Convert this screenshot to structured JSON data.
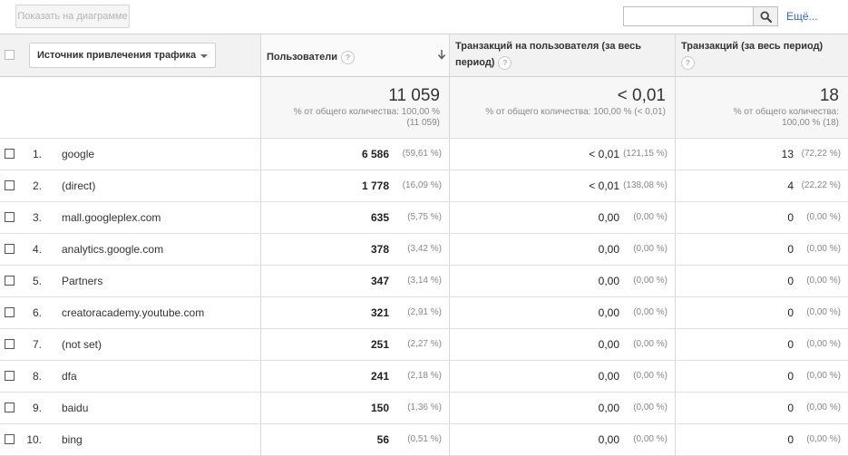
{
  "toolbar": {
    "plot_button": "Показать на диаграмме",
    "search_value": "",
    "search_icon": "search-icon",
    "more_link": "Ещё..."
  },
  "columns": {
    "dimension": "Источник привлечения трафика",
    "users": "Пользователи",
    "tpu_line1": "Транзакций на пользователя (за весь",
    "tpu_line2": "период)",
    "transactions": "Транзакций (за весь период)",
    "help": "?"
  },
  "totals": {
    "users": {
      "value": "11 059",
      "sub1": "% от общего количества: 100,00 %",
      "sub2": "(11 059)"
    },
    "tpu": {
      "value": "< 0,01",
      "sub1": "% от общего количества: 100,00 % (< 0,01)",
      "sub2": ""
    },
    "transactions": {
      "value": "18",
      "sub1": "% от общего количества:",
      "sub2": "100,00 % (18)"
    }
  },
  "rows": [
    {
      "idx": "1.",
      "source": "google",
      "users": "6 586",
      "users_pct": "(59,61 %)",
      "tpu": "< 0,01",
      "tpu_pct": "(121,15 %)",
      "tr": "13",
      "tr_pct": "(72,22 %)"
    },
    {
      "idx": "2.",
      "source": "(direct)",
      "users": "1 778",
      "users_pct": "(16,09 %)",
      "tpu": "< 0,01",
      "tpu_pct": "(138,08 %)",
      "tr": "4",
      "tr_pct": "(22,22 %)"
    },
    {
      "idx": "3.",
      "source": "mall.googleplex.com",
      "users": "635",
      "users_pct": "(5,75 %)",
      "tpu": "0,00",
      "tpu_pct": "(0,00 %)",
      "tr": "0",
      "tr_pct": "(0,00 %)"
    },
    {
      "idx": "4.",
      "source": "analytics.google.com",
      "users": "378",
      "users_pct": "(3,42 %)",
      "tpu": "0,00",
      "tpu_pct": "(0,00 %)",
      "tr": "0",
      "tr_pct": "(0,00 %)"
    },
    {
      "idx": "5.",
      "source": "Partners",
      "users": "347",
      "users_pct": "(3,14 %)",
      "tpu": "0,00",
      "tpu_pct": "(0,00 %)",
      "tr": "0",
      "tr_pct": "(0,00 %)"
    },
    {
      "idx": "6.",
      "source": "creatoracademy.youtube.com",
      "users": "321",
      "users_pct": "(2,91 %)",
      "tpu": "0,00",
      "tpu_pct": "(0,00 %)",
      "tr": "0",
      "tr_pct": "(0,00 %)"
    },
    {
      "idx": "7.",
      "source": "(not set)",
      "users": "251",
      "users_pct": "(2,27 %)",
      "tpu": "0,00",
      "tpu_pct": "(0,00 %)",
      "tr": "0",
      "tr_pct": "(0,00 %)"
    },
    {
      "idx": "8.",
      "source": "dfa",
      "users": "241",
      "users_pct": "(2,18 %)",
      "tpu": "0,00",
      "tpu_pct": "(0,00 %)",
      "tr": "0",
      "tr_pct": "(0,00 %)"
    },
    {
      "idx": "9.",
      "source": "baidu",
      "users": "150",
      "users_pct": "(1,36 %)",
      "tpu": "0,00",
      "tpu_pct": "(0,00 %)",
      "tr": "0",
      "tr_pct": "(0,00 %)"
    },
    {
      "idx": "10.",
      "source": "bing",
      "users": "56",
      "users_pct": "(0,51 %)",
      "tpu": "0,00",
      "tpu_pct": "(0,00 %)",
      "tr": "0",
      "tr_pct": "(0,00 %)"
    }
  ]
}
